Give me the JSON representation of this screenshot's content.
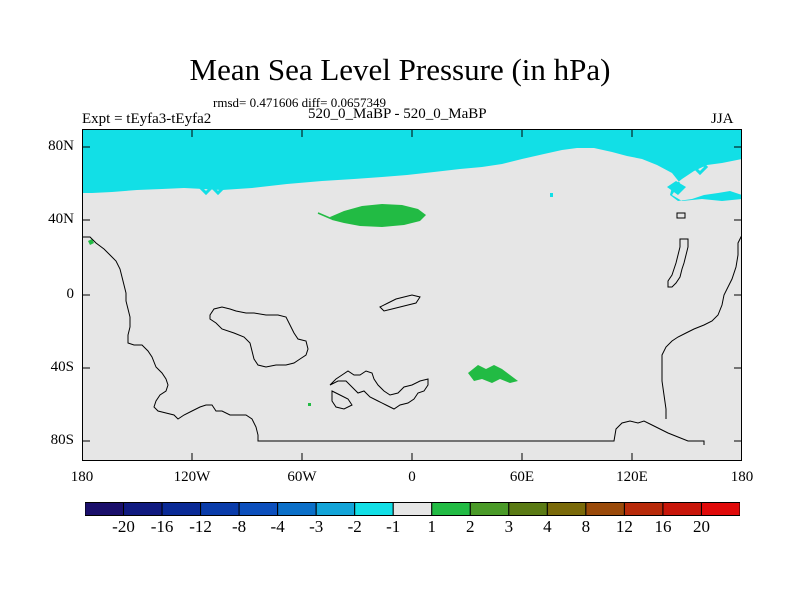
{
  "title": "Mean Sea Level Pressure (in hPa)",
  "stats": "rmsd= 0.471606 diff= 0.0657349",
  "subtitle_left": "Expt = tEyfa3-tEyfa2",
  "subtitle_center": "520_0_MaBP - 520_0_MaBP",
  "subtitle_right": "JJA",
  "y_labels": [
    "80N",
    "40N",
    "0",
    "40S",
    "80S"
  ],
  "x_labels": [
    "180",
    "120W",
    "60W",
    "0",
    "60E",
    "120E",
    "180"
  ],
  "colorbar": {
    "labels": [
      "-20",
      "-16",
      "-12",
      "-8",
      "-4",
      "-3",
      "-2",
      "-1",
      "1",
      "2",
      "3",
      "4",
      "8",
      "12",
      "16",
      "20"
    ],
    "colors": [
      "#1a0f6b",
      "#101a80",
      "#0a2a96",
      "#0a3caa",
      "#0c4fbc",
      "#0b6fc8",
      "#12a4d8",
      "#12dfe6",
      "#e6e6e6",
      "#22bb44",
      "#4a9a28",
      "#5a7a14",
      "#7a6a0a",
      "#9a4a0a",
      "#b82a0a",
      "#c8160a",
      "#e00a0a"
    ]
  },
  "map_colors": {
    "background": "#e6e6e6",
    "negative_region": "#12dfe6",
    "positive_region": "#22bb44",
    "outline": "#000000"
  }
}
